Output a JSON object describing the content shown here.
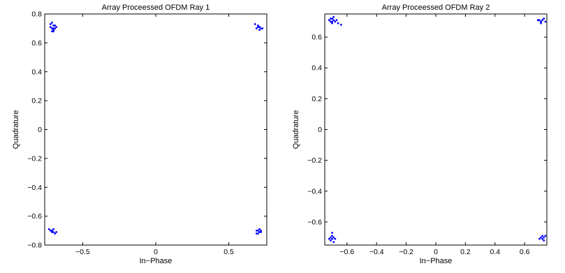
{
  "chart_data": [
    {
      "type": "scatter",
      "title": "Array Proceessed OFDM Ray 1",
      "xlabel": "In−Phase",
      "ylabel": "Quadrature",
      "xlim": [
        -0.76,
        0.76
      ],
      "ylim": [
        -0.8,
        0.8
      ],
      "xticks": [
        -0.5,
        0,
        0.5
      ],
      "xtick_labels": [
        "−0.5",
        "0",
        "0.5"
      ],
      "yticks": [
        -0.8,
        -0.6,
        -0.4,
        -0.2,
        0,
        0.2,
        0.4,
        0.6,
        0.8
      ],
      "ytick_labels": [
        "−0.8",
        "−0.6",
        "−0.4",
        "−0.2",
        "0",
        "0.2",
        "0.4",
        "0.6",
        "0.8"
      ],
      "grid": false,
      "marker_color": "#0000ff",
      "points": [
        [
          -0.71,
          0.74
        ],
        [
          -0.7,
          0.72
        ],
        [
          -0.72,
          0.71
        ],
        [
          -0.69,
          0.7
        ],
        [
          -0.7,
          0.69
        ],
        [
          -0.71,
          0.68
        ],
        [
          -0.68,
          0.71
        ],
        [
          -0.72,
          0.73
        ],
        [
          -0.7,
          0.7
        ],
        [
          -0.69,
          0.72
        ],
        [
          -0.71,
          0.7
        ],
        [
          -0.7,
          0.68
        ],
        [
          0.7,
          0.72
        ],
        [
          0.71,
          0.71
        ],
        [
          0.69,
          0.7
        ],
        [
          0.72,
          0.7
        ],
        [
          0.7,
          0.71
        ],
        [
          0.71,
          0.69
        ],
        [
          0.68,
          0.73
        ],
        [
          0.73,
          0.7
        ],
        [
          -0.71,
          -0.7
        ],
        [
          -0.7,
          -0.71
        ],
        [
          -0.72,
          -0.7
        ],
        [
          -0.69,
          -0.72
        ],
        [
          -0.7,
          -0.69
        ],
        [
          -0.71,
          -0.71
        ],
        [
          -0.68,
          -0.71
        ],
        [
          -0.73,
          -0.69
        ],
        [
          0.7,
          -0.7
        ],
        [
          0.71,
          -0.71
        ],
        [
          0.69,
          -0.7
        ],
        [
          0.72,
          -0.71
        ],
        [
          0.7,
          -0.72
        ],
        [
          0.71,
          -0.69
        ],
        [
          0.69,
          -0.72
        ],
        [
          0.72,
          -0.7
        ]
      ]
    },
    {
      "type": "scatter",
      "title": "Array Proceessed OFDM Ray 2",
      "xlabel": "In−Phase",
      "ylabel": "Quadrature",
      "xlim": [
        -0.75,
        0.75
      ],
      "ylim": [
        -0.75,
        0.75
      ],
      "xticks": [
        -0.6,
        -0.4,
        -0.2,
        0,
        0.2,
        0.4,
        0.6
      ],
      "xtick_labels": [
        "−0.6",
        "−0.4",
        "−0.2",
        "0",
        "0.2",
        "0.4",
        "0.6"
      ],
      "yticks": [
        -0.6,
        -0.4,
        -0.2,
        0,
        0.2,
        0.4,
        0.6
      ],
      "ytick_labels": [
        "−0.6",
        "−0.4",
        "−0.2",
        "0",
        "0.2",
        "0.4",
        "0.6"
      ],
      "grid": false,
      "marker_color": "#0000ff",
      "points": [
        [
          -0.7,
          0.72
        ],
        [
          -0.69,
          0.71
        ],
        [
          -0.71,
          0.7
        ],
        [
          -0.68,
          0.7
        ],
        [
          -0.7,
          0.7
        ],
        [
          -0.67,
          0.71
        ],
        [
          -0.69,
          0.73
        ],
        [
          -0.72,
          0.71
        ],
        [
          -0.66,
          0.69
        ],
        [
          -0.7,
          0.69
        ],
        [
          -0.64,
          0.68
        ],
        [
          -0.71,
          0.72
        ],
        [
          0.7,
          0.71
        ],
        [
          0.71,
          0.7
        ],
        [
          0.72,
          0.71
        ],
        [
          0.69,
          0.71
        ],
        [
          0.73,
          0.72
        ],
        [
          0.71,
          0.69
        ],
        [
          0.74,
          0.7
        ],
        [
          -0.7,
          -0.71
        ],
        [
          -0.69,
          -0.7
        ],
        [
          -0.71,
          -0.72
        ],
        [
          -0.7,
          -0.69
        ],
        [
          -0.68,
          -0.71
        ],
        [
          -0.71,
          -0.7
        ],
        [
          -0.69,
          -0.73
        ],
        [
          -0.72,
          -0.71
        ],
        [
          -0.7,
          -0.67
        ],
        [
          0.71,
          -0.7
        ],
        [
          0.72,
          -0.71
        ],
        [
          0.73,
          -0.7
        ],
        [
          0.7,
          -0.71
        ],
        [
          0.74,
          -0.69
        ],
        [
          0.72,
          -0.69
        ],
        [
          0.73,
          -0.72
        ]
      ]
    }
  ]
}
